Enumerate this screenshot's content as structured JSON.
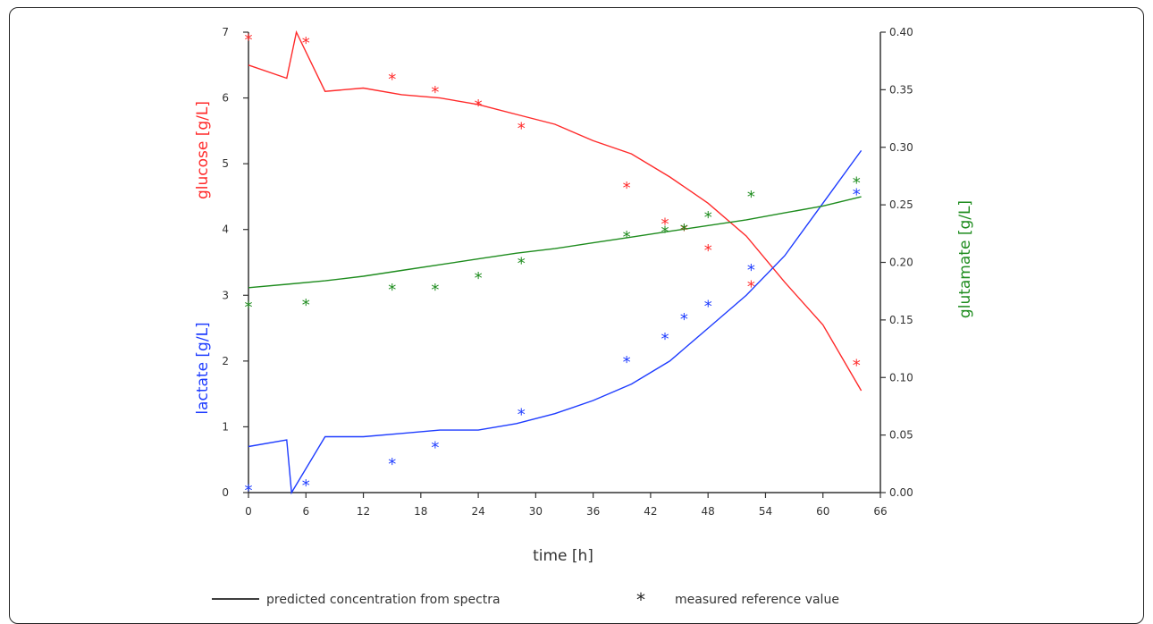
{
  "chart_data": {
    "type": "line",
    "xlabel": "time [h]",
    "ylabel_left_top": "glucose [g/L]",
    "ylabel_left_bottom": "lactate [g/L]",
    "ylabel_right": "glutamate [g/L]",
    "xlim": [
      0,
      66
    ],
    "ylim_left": [
      0,
      7
    ],
    "ylim_right": [
      0,
      0.4
    ],
    "x_ticks": [
      "0",
      "6",
      "12",
      "18",
      "24",
      "30",
      "36",
      "42",
      "48",
      "54",
      "60",
      "66"
    ],
    "y_left_ticks": [
      "0",
      "1",
      "2",
      "3",
      "4",
      "5",
      "6",
      "7"
    ],
    "y_right_ticks": [
      "0.00",
      "0.05",
      "0.10",
      "0.15",
      "0.20",
      "0.25",
      "0.30",
      "0.35",
      "0.40"
    ],
    "legend": {
      "line_label": "predicted concentration from spectra",
      "marker_symbol": "*",
      "marker_label": "measured reference value"
    },
    "colors": {
      "glucose": "#ff2a2a",
      "lactate": "#1e3cff",
      "glutamate": "#1e8c1e",
      "axis": "#333333"
    },
    "series": [
      {
        "axis": "left",
        "color": "#ff2a2a",
        "predicted": {
          "x": [
            0,
            4,
            5,
            8,
            12,
            16,
            20,
            24,
            28,
            32,
            36,
            40,
            44,
            46,
            48,
            52,
            56,
            60,
            64
          ],
          "y": [
            6.5,
            6.3,
            7.0,
            6.1,
            6.15,
            6.05,
            6.0,
            5.9,
            5.75,
            5.6,
            5.35,
            5.15,
            4.8,
            4.6,
            4.4,
            3.9,
            3.2,
            2.55,
            1.55
          ]
        },
        "measured": {
          "x": [
            0,
            6,
            15,
            19.5,
            24,
            28.5,
            39.5,
            43.5,
            45.5,
            48,
            52.5,
            63.5
          ],
          "y": [
            6.9,
            6.85,
            6.3,
            6.1,
            5.9,
            5.55,
            4.65,
            4.1,
            4.0,
            3.7,
            3.15,
            1.95
          ]
        }
      },
      {
        "axis": "left",
        "color": "#1e3cff",
        "predicted": {
          "x": [
            0,
            4,
            4.5,
            8,
            12,
            16,
            20,
            24,
            28,
            32,
            36,
            40,
            44,
            48,
            52,
            56,
            60,
            64
          ],
          "y": [
            0.7,
            0.8,
            0.0,
            0.85,
            0.85,
            0.9,
            0.95,
            0.95,
            1.05,
            1.2,
            1.4,
            1.65,
            2.0,
            2.5,
            3.0,
            3.6,
            4.4,
            5.2
          ]
        },
        "measured": {
          "x": [
            0,
            6,
            15,
            19.5,
            28.5,
            39.5,
            43.5,
            45.5,
            48,
            52.5,
            63.5
          ],
          "y": [
            0.05,
            0.12,
            0.45,
            0.7,
            1.2,
            2.0,
            2.35,
            2.65,
            2.85,
            3.4,
            4.55
          ]
        }
      },
      {
        "axis": "right",
        "color": "#1e8c1e",
        "predicted": {
          "x": [
            0,
            4,
            8,
            12,
            16,
            20,
            24,
            28,
            32,
            36,
            40,
            44,
            48,
            52,
            56,
            60,
            64
          ],
          "y": [
            0.178,
            0.181,
            0.184,
            0.188,
            0.193,
            0.198,
            0.203,
            0.208,
            0.212,
            0.217,
            0.222,
            0.227,
            0.232,
            0.237,
            0.243,
            0.249,
            0.257
          ]
        },
        "measured": {
          "x": [
            0,
            6,
            15,
            19.5,
            24,
            28.5,
            39.5,
            43.5,
            45.5,
            48,
            52.5,
            63.5
          ],
          "y": [
            0.162,
            0.164,
            0.177,
            0.177,
            0.187,
            0.2,
            0.223,
            0.227,
            0.229,
            0.24,
            0.258,
            0.27
          ]
        }
      }
    ]
  }
}
